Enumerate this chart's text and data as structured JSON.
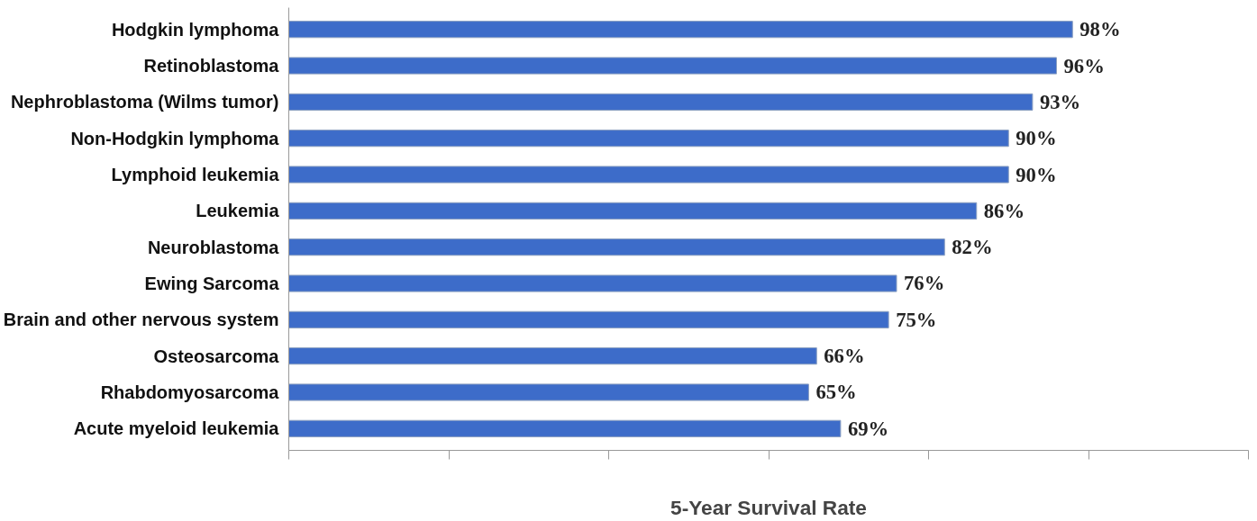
{
  "chart_data": {
    "type": "bar",
    "orientation": "horizontal",
    "xlabel": "5-Year Survival Rate",
    "categories": [
      "Hodgkin lymphoma",
      "Retinoblastoma",
      "Nephroblastoma (Wilms tumor)",
      "Non-Hodgkin lymphoma",
      "Lymphoid leukemia",
      "Leukemia",
      "Neuroblastoma",
      "Ewing Sarcoma",
      "Brain and other nervous system",
      "Osteosarcoma",
      "Rhabdomyosarcoma",
      "Acute myeloid leukemia"
    ],
    "values": [
      98,
      96,
      93,
      90,
      90,
      86,
      82,
      76,
      75,
      66,
      65,
      69
    ],
    "value_labels": [
      "98%",
      "96%",
      "93%",
      "90%",
      "90%",
      "86%",
      "82%",
      "76%",
      "75%",
      "66%",
      "65%",
      "69%"
    ],
    "color": "#3d6cc9",
    "xlim": [
      0,
      120
    ],
    "xticks": [
      {
        "value": 0,
        "label": null
      },
      {
        "value": 20,
        "label": null
      },
      {
        "value": 40,
        "label": null
      },
      {
        "value": 60,
        "label": null
      },
      {
        "value": 80,
        "label": null
      },
      {
        "value": 100,
        "label": null
      },
      {
        "value": 120,
        "label": null
      }
    ],
    "tick_labels": "y",
    "grid": false
  }
}
